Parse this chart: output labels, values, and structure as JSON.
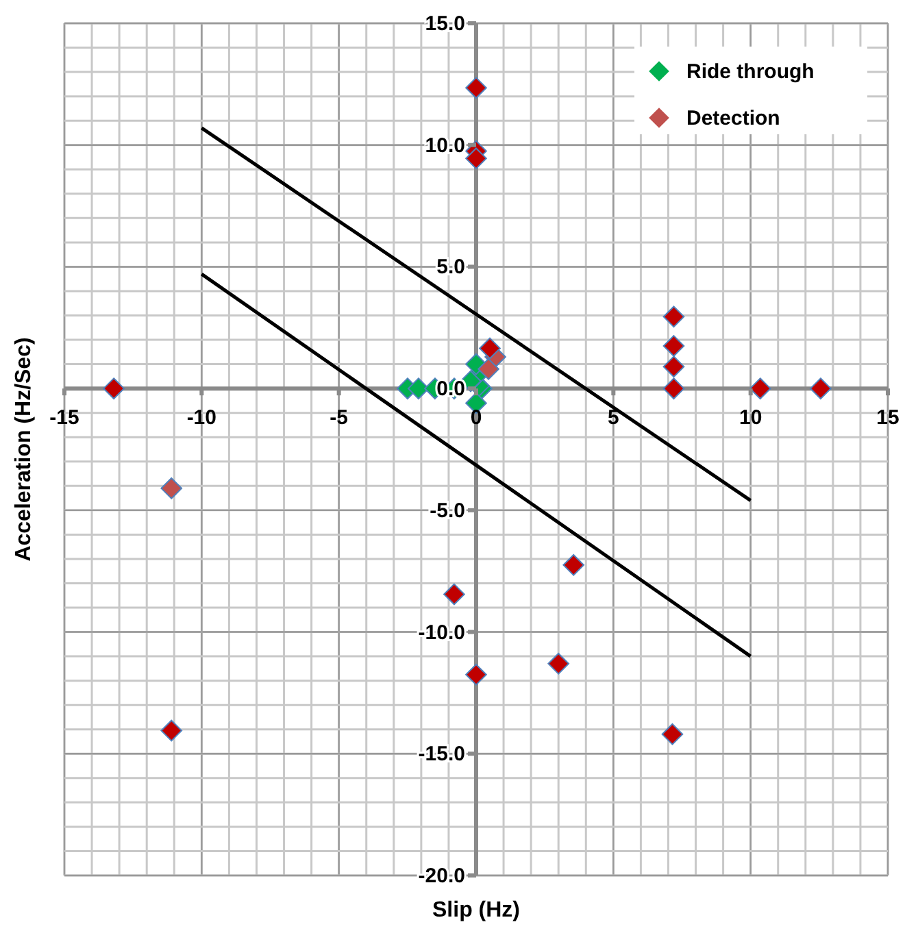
{
  "chart_data": {
    "type": "scatter",
    "xlabel": "Slip (Hz)",
    "ylabel": "Acceleration (Hz/Sec)",
    "xlim": [
      -15,
      15
    ],
    "ylim": [
      -20,
      15
    ],
    "xticks": [
      -15,
      -10,
      -5,
      0,
      5,
      10,
      15
    ],
    "yticks": [
      {
        "value": -20,
        "label": "-20.0"
      },
      {
        "value": -15,
        "label": "-15.0"
      },
      {
        "value": -10,
        "label": "-10.0"
      },
      {
        "value": -5,
        "label": "-5.0"
      },
      {
        "value": 0,
        "label": "0.0"
      },
      {
        "value": 5,
        "label": "5.0"
      },
      {
        "value": 10,
        "label": "10.0"
      },
      {
        "value": 15,
        "label": "15.0"
      }
    ],
    "grid": true,
    "legend": "top right",
    "marker": "diamond",
    "series": [
      {
        "type": "line",
        "color": "#000000",
        "marker": "none",
        "x": [
          -10,
          10
        ],
        "values": [
          10.7,
          -4.6
        ]
      },
      {
        "type": "line",
        "color": "#000000",
        "marker": "none",
        "x": [
          -10,
          10
        ],
        "values": [
          4.7,
          -11.0
        ]
      },
      {
        "name": "Ride through",
        "color": "#00b050",
        "x": [
          -2.5,
          -2.1,
          -1.5,
          -0.8,
          0.2,
          0.1,
          0,
          0,
          0,
          -0.2
        ],
        "values": [
          0,
          0,
          0,
          0,
          0,
          0.1,
          0.5,
          1.0,
          -0.6,
          0.3
        ]
      },
      {
        "name": "Detection",
        "color": "#c0504d",
        "x": [
          0.7,
          0.45,
          -11.1
        ],
        "values": [
          1.3,
          0.8,
          -4.1
        ]
      },
      {
        "color": "#c00000",
        "x": [
          0,
          0,
          0,
          -13.2,
          -11.1,
          0.5,
          7.2,
          7.2,
          7.2,
          7.2,
          10.35,
          12.55,
          3.55,
          -0.8,
          0,
          3.0,
          7.15
        ],
        "values": [
          12.35,
          9.75,
          9.45,
          0,
          -14.05,
          1.65,
          2.95,
          1.75,
          0.9,
          0,
          0,
          0,
          -7.25,
          -8.45,
          -11.75,
          -11.3,
          -14.2
        ]
      }
    ]
  }
}
